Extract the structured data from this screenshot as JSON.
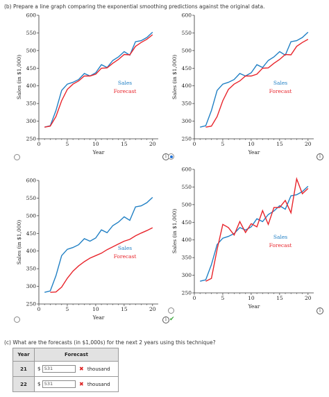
{
  "part_b": {
    "label": "(b)",
    "text": "Prepare a line graph comparing the exponential smoothing predictions against the original data."
  },
  "part_c": {
    "label": "(c)",
    "text": "What are the forecasts (in $1,000s) for the next 2 years using this technique?"
  },
  "colors": {
    "sales": "#1f7fc4",
    "forecast": "#e8242b"
  },
  "chart_data": [
    {
      "type": "line",
      "panel": "top-left",
      "xlabel": "Year",
      "ylabel": "Sales (in $1,000)",
      "xlim": [
        0,
        21
      ],
      "ylim": [
        250,
        600
      ],
      "xticks": [
        "0",
        "5",
        "10",
        "15",
        "20"
      ],
      "yticks": [
        "250",
        "300",
        "350",
        "400",
        "450",
        "500",
        "550",
        "600"
      ],
      "x": [
        1,
        2,
        3,
        4,
        5,
        6,
        7,
        8,
        9,
        10,
        11,
        12,
        13,
        14,
        15,
        16,
        17,
        18,
        19,
        20
      ],
      "series": [
        {
          "name": "Sales",
          "values": [
            283,
            287,
            330,
            387,
            405,
            410,
            418,
            435,
            428,
            437,
            460,
            452,
            472,
            482,
            497,
            487,
            525,
            528,
            537,
            552
          ]
        },
        {
          "name": "Forecast",
          "values": [
            283,
            286,
            313,
            358,
            390,
            405,
            414,
            428,
            428,
            433,
            450,
            451,
            464,
            475,
            489,
            488,
            512,
            523,
            532,
            545
          ]
        }
      ],
      "legend": "center-right"
    },
    {
      "type": "line",
      "panel": "top-right",
      "xlabel": "Year",
      "ylabel": "Sales (in $1,000)",
      "xlim": [
        0,
        21
      ],
      "ylim": [
        250,
        600
      ],
      "xticks": [
        "0",
        "5",
        "10",
        "15",
        "20"
      ],
      "yticks": [
        "250",
        "300",
        "350",
        "400",
        "450",
        "500",
        "550",
        "600"
      ],
      "x": [
        1,
        2,
        3,
        4,
        5,
        6,
        7,
        8,
        9,
        10,
        11,
        12,
        13,
        14,
        15,
        16,
        17,
        18,
        19,
        20
      ],
      "series": [
        {
          "name": "Sales",
          "values": [
            283,
            287,
            330,
            387,
            405,
            410,
            418,
            435,
            428,
            437,
            460,
            452,
            472,
            482,
            497,
            487,
            525,
            528,
            537,
            552
          ]
        },
        {
          "name": "Forecast",
          "values": [
            null,
            283,
            286,
            313,
            358,
            390,
            405,
            414,
            428,
            428,
            433,
            450,
            451,
            464,
            475,
            489,
            488,
            512,
            523,
            532
          ]
        }
      ],
      "legend": "center-right"
    },
    {
      "type": "line",
      "panel": "bottom-left",
      "xlabel": "Year",
      "ylabel": "Sales (in $1,000)",
      "xlim": [
        0,
        21
      ],
      "ylim": [
        250,
        600
      ],
      "xticks": [
        "0",
        "5",
        "10",
        "15",
        "20"
      ],
      "yticks": [
        "250",
        "300",
        "350",
        "400",
        "450",
        "500",
        "550",
        "600"
      ],
      "x": [
        1,
        2,
        3,
        4,
        5,
        6,
        7,
        8,
        9,
        10,
        11,
        12,
        13,
        14,
        15,
        16,
        17,
        18,
        19,
        20
      ],
      "series": [
        {
          "name": "Sales",
          "values": [
            283,
            287,
            330,
            387,
            405,
            410,
            418,
            435,
            428,
            437,
            460,
            452,
            472,
            482,
            497,
            487,
            525,
            528,
            537,
            552
          ]
        },
        {
          "name": "Forecast",
          "values": [
            null,
            283,
            284,
            298,
            323,
            343,
            358,
            370,
            380,
            387,
            394,
            404,
            412,
            420,
            428,
            433,
            443,
            451,
            458,
            466
          ]
        }
      ],
      "legend": "center-right"
    },
    {
      "type": "line",
      "panel": "bottom-right",
      "xlabel": "Year",
      "ylabel": "Sales (in $1,000)",
      "xlim": [
        0,
        21
      ],
      "ylim": [
        250,
        600
      ],
      "xticks": [
        "0",
        "5",
        "10",
        "15",
        "20"
      ],
      "yticks": [
        "250",
        "300",
        "350",
        "400",
        "450",
        "500",
        "550",
        "600"
      ],
      "x": [
        1,
        2,
        3,
        4,
        5,
        6,
        7,
        8,
        9,
        10,
        11,
        12,
        13,
        14,
        15,
        16,
        17,
        18,
        19,
        20
      ],
      "series": [
        {
          "name": "Sales",
          "values": [
            283,
            287,
            330,
            387,
            405,
            410,
            418,
            435,
            428,
            437,
            460,
            452,
            472,
            482,
            497,
            487,
            525,
            528,
            537,
            552
          ]
        },
        {
          "name": "Forecast",
          "values": [
            null,
            283,
            291,
            373,
            444,
            435,
            414,
            452,
            421,
            446,
            437,
            483,
            444,
            492,
            492,
            512,
            477,
            573,
            531,
            546
          ]
        }
      ],
      "legend": "center-right"
    }
  ],
  "legend_labels": {
    "sales": "Sales",
    "forecast": "Forecast"
  },
  "options": [
    {
      "panel": "top-left",
      "selected": false
    },
    {
      "panel": "top-right",
      "selected": true
    },
    {
      "panel": "bottom-left",
      "selected": false
    },
    {
      "panel": "bottom-right",
      "selected": false
    }
  ],
  "info_glyph": "i",
  "check_glyph": "✔",
  "table": {
    "headers": [
      "Year",
      "Forecast"
    ],
    "rows": [
      {
        "year": "21",
        "currency": "$",
        "value": "531",
        "status": "incorrect",
        "unit": "thousand"
      },
      {
        "year": "22",
        "currency": "$",
        "value": "531",
        "status": "incorrect",
        "unit": "thousand"
      }
    ]
  }
}
